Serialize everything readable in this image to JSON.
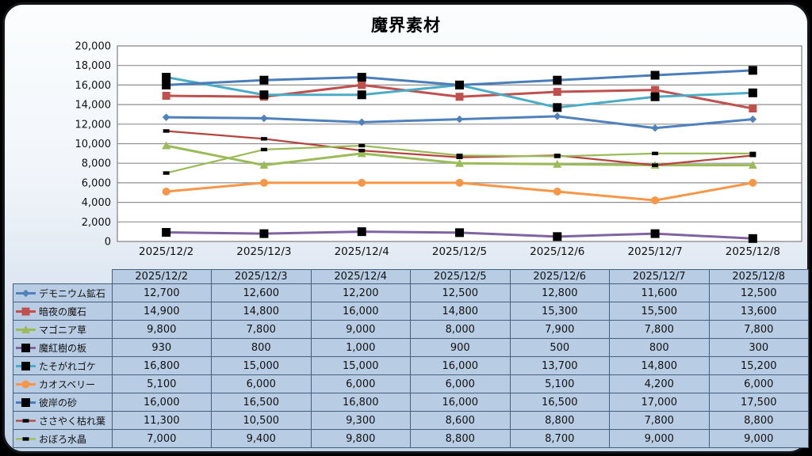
{
  "title": "魔界素材",
  "dates": [
    "2025/12/2",
    "2025/12/3",
    "2025/12/4",
    "2025/12/5",
    "2025/12/6",
    "2025/12/7",
    "2025/12/8"
  ],
  "chart_data": {
    "type": "line",
    "title": "魔界素材",
    "xlabel": "",
    "ylabel": "",
    "ylim": [
      0,
      20000
    ],
    "ytick_step": 2000,
    "ytick_labels": [
      "0",
      "2,000",
      "4,000",
      "6,000",
      "8,000",
      "10,000",
      "12,000",
      "14,000",
      "16,000",
      "18,000",
      "20,000"
    ],
    "grid": true,
    "legend_position": "table-left",
    "categories": [
      "2025/12/2",
      "2025/12/3",
      "2025/12/4",
      "2025/12/5",
      "2025/12/6",
      "2025/12/7",
      "2025/12/8"
    ],
    "series": [
      {
        "name": "デモニウム鉱石",
        "color": "#4F81BD",
        "marker": "diamond",
        "marker_color": "#4F81BD",
        "line_width": 3,
        "values": [
          12700,
          12600,
          12200,
          12500,
          12800,
          11600,
          12500
        ]
      },
      {
        "name": "暗夜の魔石",
        "color": "#C0504D",
        "marker": "square",
        "marker_color": "#C0504D",
        "line_width": 3,
        "values": [
          14900,
          14800,
          16000,
          14800,
          15300,
          15500,
          13600
        ]
      },
      {
        "name": "マゴニア草",
        "color": "#9BBB59",
        "marker": "triangle",
        "marker_color": "#9BBB59",
        "line_width": 3,
        "values": [
          9800,
          7800,
          9000,
          8000,
          7900,
          7800,
          7800
        ]
      },
      {
        "name": "魔紅樹の板",
        "color": "#8064A2",
        "marker": "square",
        "marker_color": "#000000",
        "line_width": 3,
        "values": [
          930,
          800,
          1000,
          900,
          500,
          800,
          300
        ]
      },
      {
        "name": "たそがれゴケ",
        "color": "#4BACC6",
        "marker": "square",
        "marker_color": "#000000",
        "line_width": 3,
        "values": [
          16800,
          15000,
          15000,
          16000,
          13700,
          14800,
          15200
        ]
      },
      {
        "name": "カオスベリー",
        "color": "#F79646",
        "marker": "circle",
        "marker_color": "#F79646",
        "line_width": 3,
        "values": [
          5100,
          6000,
          6000,
          6000,
          5100,
          4200,
          6000
        ]
      },
      {
        "name": "彼岸の砂",
        "color": "#4A7EBB",
        "marker": "square",
        "marker_color": "#000000",
        "line_width": 3,
        "values": [
          16000,
          16500,
          16800,
          16000,
          16500,
          17000,
          17500
        ]
      },
      {
        "name": "ささやく枯れ葉",
        "color": "#B5443F",
        "marker": "dash",
        "marker_color": "#000000",
        "line_width": 2.25,
        "values": [
          11300,
          10500,
          9300,
          8600,
          8800,
          7800,
          8800
        ]
      },
      {
        "name": "おぼろ水晶",
        "color": "#9BBB59",
        "marker": "dash",
        "marker_color": "#000000",
        "line_width": 2.25,
        "values": [
          7000,
          9400,
          9800,
          8800,
          8700,
          9000,
          9000
        ]
      }
    ]
  },
  "table": {
    "header": [
      "2025/12/2",
      "2025/12/3",
      "2025/12/4",
      "2025/12/5",
      "2025/12/6",
      "2025/12/7",
      "2025/12/8"
    ],
    "rows": [
      {
        "name": "デモニウム鉱石",
        "values": [
          "12,700",
          "12,600",
          "12,200",
          "12,500",
          "12,800",
          "11,600",
          "12,500"
        ]
      },
      {
        "name": "暗夜の魔石",
        "values": [
          "14,900",
          "14,800",
          "16,000",
          "14,800",
          "15,300",
          "15,500",
          "13,600"
        ]
      },
      {
        "name": "マゴニア草",
        "values": [
          "9,800",
          "7,800",
          "9,000",
          "8,000",
          "7,900",
          "7,800",
          "7,800"
        ]
      },
      {
        "name": "魔紅樹の板",
        "values": [
          "930",
          "800",
          "1,000",
          "900",
          "500",
          "800",
          "300"
        ]
      },
      {
        "name": "たそがれゴケ",
        "values": [
          "16,800",
          "15,000",
          "15,000",
          "16,000",
          "13,700",
          "14,800",
          "15,200"
        ]
      },
      {
        "name": "カオスベリー",
        "values": [
          "5,100",
          "6,000",
          "6,000",
          "6,000",
          "5,100",
          "4,200",
          "6,000"
        ]
      },
      {
        "name": "彼岸の砂",
        "values": [
          "16,000",
          "16,500",
          "16,800",
          "16,000",
          "16,500",
          "17,000",
          "17,500"
        ]
      },
      {
        "name": "ささやく枯れ葉",
        "values": [
          "11,300",
          "10,500",
          "9,300",
          "8,600",
          "8,800",
          "7,800",
          "8,800"
        ]
      },
      {
        "name": "おぼろ水晶",
        "values": [
          "7,000",
          "9,400",
          "9,800",
          "8,800",
          "8,700",
          "9,000",
          "9,000"
        ]
      }
    ]
  }
}
